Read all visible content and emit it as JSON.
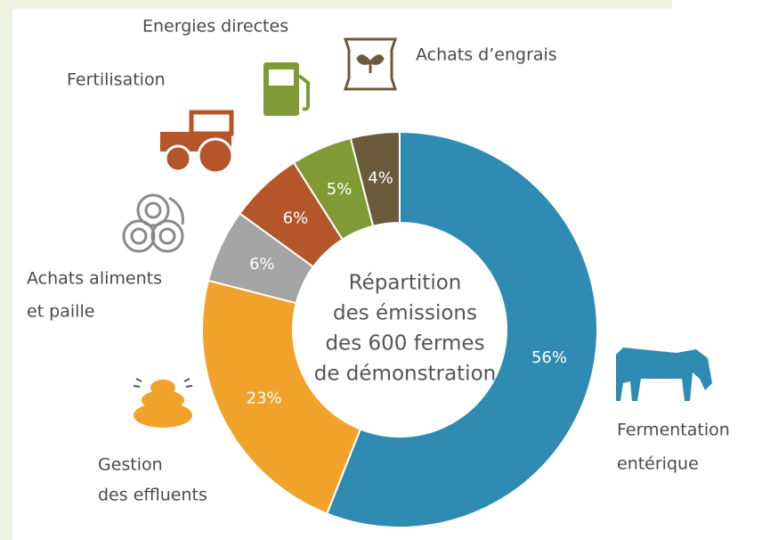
{
  "chart_data": {
    "type": "pie",
    "title": [
      "Répartition",
      "des émissions",
      "des 600 fermes",
      "de démonstration"
    ],
    "categories": [
      [
        "Fermentation",
        "entérique"
      ],
      [
        "Gestion",
        "des effluents"
      ],
      [
        "Achats aliments",
        "et paille"
      ],
      [
        "Fertilisation"
      ],
      [
        "Energies directes"
      ],
      [
        "Achats d’engrais"
      ]
    ],
    "values": [
      56,
      23,
      6,
      6,
      5,
      4
    ],
    "value_labels": [
      "56%",
      "23%",
      "6%",
      "6%",
      "5%",
      "4%"
    ],
    "colors": [
      "#2f8bb1",
      "#f0a22b",
      "#a4a4a4",
      "#b4552a",
      "#809b36",
      "#6c5b3b"
    ],
    "donut": true
  }
}
